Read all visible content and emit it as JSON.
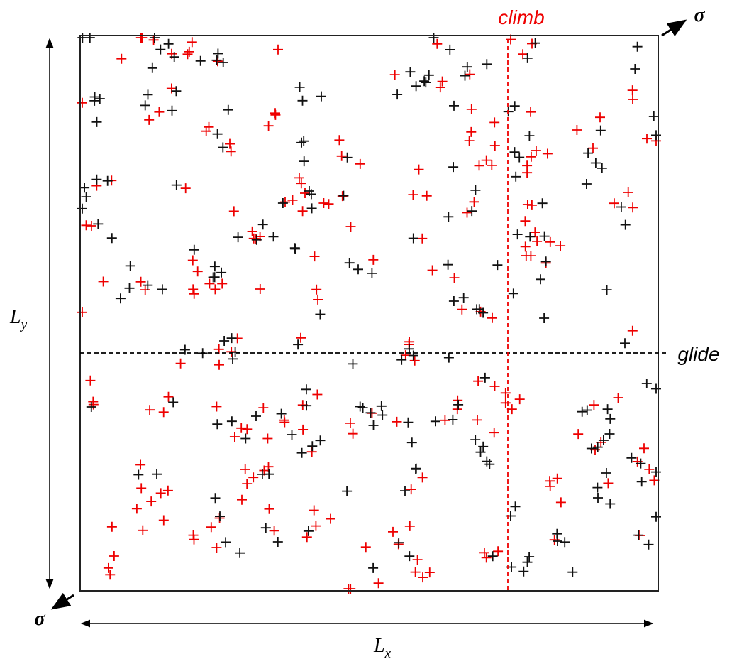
{
  "labels": {
    "climb": "climb",
    "glide": "glide",
    "sigma_top": "σ",
    "sigma_bottom": "σ",
    "lx": {
      "base": "L",
      "sub": "x"
    },
    "ly": {
      "base": "L",
      "sub": "y"
    }
  }
}
